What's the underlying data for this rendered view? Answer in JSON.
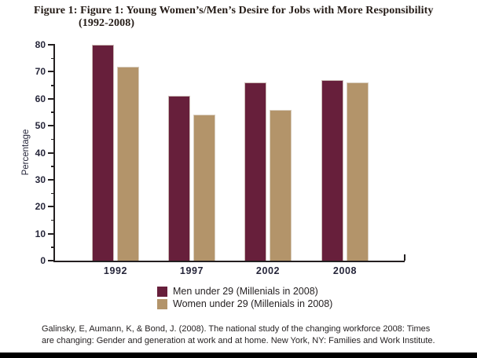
{
  "figure": {
    "title_line1": "Figure 1: Figure 1: Young Women’s/Men’s Desire for Jobs with More Responsibility",
    "title_line2": "(1992-2008)"
  },
  "chart_data": {
    "type": "bar",
    "title": "Figure 1: Figure 1: Young Women’s/Men’s Desire for Jobs with More Responsibility (1992-2008)",
    "categories": [
      "1992",
      "1997",
      "2002",
      "2008"
    ],
    "series": [
      {
        "name": "Men under 29 (Millenials in 2008)",
        "color": "#671f3b",
        "values": [
          80,
          61,
          66,
          67
        ]
      },
      {
        "name": "Women under 29 (Millenials in 2008)",
        "color": "#b3946a",
        "values": [
          72,
          54,
          56,
          66
        ]
      }
    ],
    "xlabel": "",
    "ylabel": "Percentage",
    "ylim": [
      0,
      80
    ],
    "ytick_step": 10,
    "minor_tick_step": 5,
    "ytick_labels": [
      "0",
      "10",
      "20",
      "30",
      "40",
      "50",
      "60",
      "70",
      "80"
    ],
    "grid": false,
    "legend_position": "bottom-center",
    "axis_color": "#231f20",
    "label_color": "#26263a"
  },
  "footer": {
    "citation": "Galinsky, E, Aumann, K, & Bond, J. (2008). The national study of the changing workforce 2008: Times are changing: Gender and generation at work and at home. New York, NY: Families and Work Institute."
  }
}
